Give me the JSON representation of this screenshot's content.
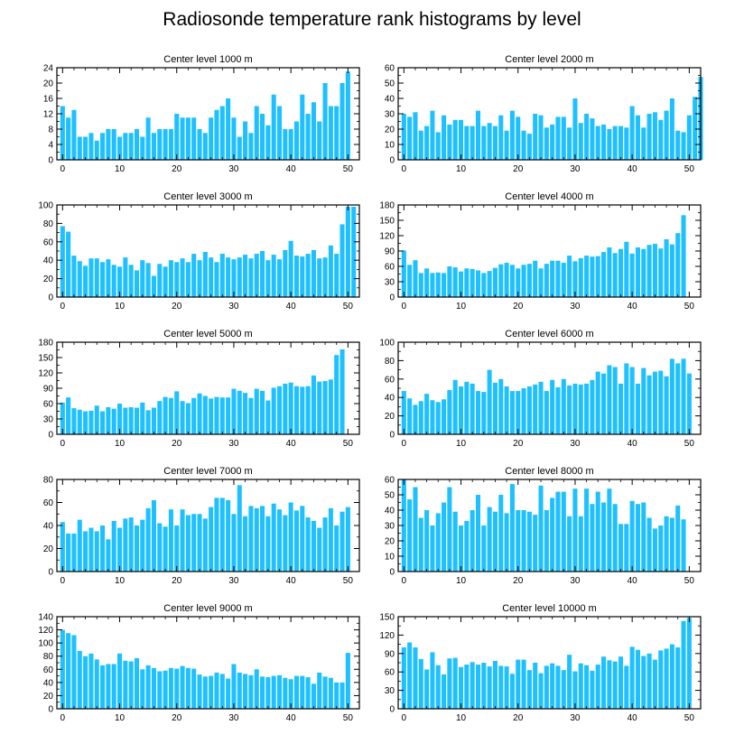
{
  "title": "Radiosonde temperature rank histograms by level",
  "colors": {
    "bar": "#1ec0ff",
    "axis": "#000000"
  },
  "chart_data": [
    {
      "type": "bar",
      "title": "Center level 1000 m",
      "xlim": [
        -1,
        52
      ],
      "ylim": [
        0,
        24
      ],
      "xticks": [
        0,
        10,
        20,
        30,
        40,
        50
      ],
      "yticks": [
        0,
        4,
        8,
        12,
        16,
        20,
        24
      ],
      "values": [
        14,
        11,
        13,
        6,
        6,
        7,
        5,
        7,
        8,
        8,
        6,
        7,
        7,
        8,
        6,
        11,
        7,
        8,
        8,
        8,
        12,
        11,
        11,
        11,
        8,
        7,
        11,
        13,
        14,
        16,
        11,
        6,
        10,
        7,
        14,
        12,
        9,
        17,
        14,
        8,
        8,
        10,
        17,
        12,
        15,
        10,
        20,
        14,
        14,
        20,
        23,
        0
      ]
    },
    {
      "type": "bar",
      "title": "Center level 2000 m",
      "xlim": [
        -1,
        52
      ],
      "ylim": [
        0,
        60
      ],
      "xticks": [
        0,
        10,
        20,
        30,
        40,
        50
      ],
      "yticks": [
        0,
        10,
        20,
        30,
        40,
        50,
        60
      ],
      "values": [
        30,
        28,
        31,
        19,
        22,
        32,
        18,
        29,
        23,
        26,
        26,
        22,
        22,
        32,
        22,
        24,
        22,
        29,
        19,
        32,
        28,
        19,
        17,
        30,
        29,
        21,
        23,
        28,
        28,
        21,
        40,
        24,
        30,
        27,
        22,
        23,
        20,
        22,
        22,
        21,
        35,
        29,
        21,
        30,
        31,
        26,
        32,
        40,
        19,
        18,
        29,
        41,
        54
      ]
    },
    {
      "type": "bar",
      "title": "Center level 3000 m",
      "xlim": [
        -1,
        52
      ],
      "ylim": [
        0,
        100
      ],
      "xticks": [
        0,
        10,
        20,
        30,
        40,
        50
      ],
      "yticks": [
        0,
        20,
        40,
        60,
        80,
        100
      ],
      "values": [
        77,
        71,
        45,
        39,
        34,
        42,
        42,
        38,
        41,
        35,
        33,
        43,
        35,
        29,
        40,
        37,
        23,
        36,
        33,
        40,
        38,
        42,
        38,
        47,
        40,
        49,
        43,
        38,
        47,
        43,
        41,
        43,
        46,
        42,
        47,
        50,
        40,
        46,
        41,
        51,
        61,
        45,
        44,
        47,
        51,
        42,
        43,
        56,
        47,
        79,
        98,
        98
      ]
    },
    {
      "type": "bar",
      "title": "Center level 4000 m",
      "xlim": [
        -1,
        52
      ],
      "ylim": [
        0,
        180
      ],
      "xticks": [
        0,
        10,
        20,
        30,
        40,
        50
      ],
      "yticks": [
        0,
        30,
        60,
        90,
        120,
        150,
        180
      ],
      "values": [
        91,
        63,
        72,
        47,
        56,
        47,
        48,
        47,
        60,
        58,
        50,
        56,
        55,
        52,
        47,
        51,
        57,
        64,
        67,
        63,
        56,
        63,
        65,
        71,
        56,
        65,
        71,
        71,
        67,
        81,
        70,
        76,
        81,
        79,
        80,
        88,
        97,
        86,
        94,
        108,
        85,
        97,
        94,
        102,
        104,
        95,
        113,
        103,
        125,
        160
      ]
    },
    {
      "type": "bar",
      "title": "Center level 5000 m",
      "xlim": [
        -1,
        52
      ],
      "ylim": [
        0,
        180
      ],
      "xticks": [
        0,
        10,
        20,
        30,
        40,
        50
      ],
      "yticks": [
        0,
        30,
        60,
        90,
        120,
        150,
        180
      ],
      "values": [
        62,
        72,
        51,
        48,
        45,
        46,
        56,
        45,
        53,
        50,
        60,
        52,
        53,
        52,
        62,
        47,
        52,
        65,
        73,
        71,
        84,
        65,
        61,
        71,
        80,
        75,
        70,
        73,
        72,
        72,
        89,
        85,
        81,
        71,
        89,
        85,
        66,
        91,
        94,
        99,
        101,
        94,
        93,
        94,
        115,
        103,
        104,
        107,
        155,
        166
      ]
    },
    {
      "type": "bar",
      "title": "Center level 6000 m",
      "xlim": [
        -1,
        52
      ],
      "ylim": [
        0,
        100
      ],
      "xticks": [
        0,
        10,
        20,
        30,
        40,
        50
      ],
      "yticks": [
        0,
        20,
        40,
        60,
        80,
        100
      ],
      "values": [
        47,
        39,
        32,
        36,
        44,
        37,
        35,
        38,
        48,
        59,
        52,
        57,
        55,
        47,
        46,
        70,
        56,
        60,
        52,
        47,
        47,
        50,
        52,
        54,
        57,
        47,
        59,
        51,
        60,
        53,
        55,
        54,
        55,
        59,
        68,
        66,
        75,
        73,
        55,
        77,
        73,
        55,
        72,
        64,
        68,
        69,
        63,
        82,
        77,
        82,
        66
      ]
    },
    {
      "type": "bar",
      "title": "Center level 7000 m",
      "xlim": [
        -1,
        52
      ],
      "ylim": [
        0,
        80
      ],
      "xticks": [
        0,
        10,
        20,
        30,
        40,
        50
      ],
      "yticks": [
        0,
        20,
        40,
        60,
        80
      ],
      "values": [
        43,
        33,
        33,
        45,
        35,
        38,
        35,
        40,
        28,
        44,
        38,
        46,
        47,
        40,
        45,
        55,
        62,
        42,
        39,
        54,
        40,
        54,
        49,
        50,
        50,
        46,
        56,
        64,
        64,
        62,
        50,
        75,
        48,
        57,
        55,
        57,
        48,
        59,
        54,
        49,
        60,
        53,
        57,
        47,
        44,
        38,
        47,
        55,
        40,
        52,
        56
      ]
    },
    {
      "type": "bar",
      "title": "Center level 8000 m",
      "xlim": [
        -1,
        52
      ],
      "ylim": [
        0,
        60
      ],
      "xticks": [
        0,
        10,
        20,
        30,
        40,
        50
      ],
      "yticks": [
        0,
        10,
        20,
        30,
        40,
        50,
        60
      ],
      "values": [
        60,
        47,
        55,
        35,
        40,
        30,
        38,
        45,
        55,
        39,
        30,
        33,
        40,
        50,
        30,
        42,
        39,
        50,
        38,
        57,
        40,
        40,
        39,
        37,
        56,
        40,
        48,
        52,
        52,
        36,
        54,
        36,
        54,
        44,
        52,
        45,
        54,
        44,
        31,
        31,
        46,
        44,
        45,
        35,
        28,
        30,
        36,
        35,
        43,
        34
      ]
    },
    {
      "type": "bar",
      "title": "Center level 9000 m",
      "xlim": [
        -1,
        52
      ],
      "ylim": [
        0,
        140
      ],
      "xticks": [
        0,
        10,
        20,
        30,
        40,
        50
      ],
      "yticks": [
        0,
        20,
        40,
        60,
        80,
        100,
        120,
        140
      ],
      "values": [
        120,
        115,
        112,
        88,
        80,
        84,
        75,
        66,
        68,
        68,
        84,
        73,
        72,
        77,
        60,
        66,
        62,
        57,
        58,
        62,
        61,
        65,
        62,
        61,
        52,
        49,
        50,
        55,
        53,
        46,
        68,
        55,
        53,
        51,
        60,
        49,
        48,
        50,
        51,
        47,
        45,
        50,
        50,
        48,
        38,
        55,
        49,
        47,
        40,
        40,
        85
      ]
    },
    {
      "type": "bar",
      "title": "Center level 10000 m",
      "xlim": [
        -1,
        52
      ],
      "ylim": [
        0,
        150
      ],
      "xticks": [
        0,
        10,
        20,
        30,
        40,
        50
      ],
      "yticks": [
        0,
        30,
        60,
        90,
        120,
        150
      ],
      "values": [
        100,
        108,
        100,
        81,
        64,
        92,
        71,
        56,
        82,
        83,
        68,
        72,
        76,
        72,
        75,
        69,
        78,
        70,
        69,
        57,
        80,
        80,
        63,
        75,
        58,
        70,
        74,
        70,
        63,
        88,
        61,
        74,
        71,
        62,
        72,
        85,
        79,
        77,
        85,
        70,
        101,
        96,
        86,
        90,
        80,
        95,
        98,
        105,
        100,
        143,
        148
      ]
    }
  ]
}
